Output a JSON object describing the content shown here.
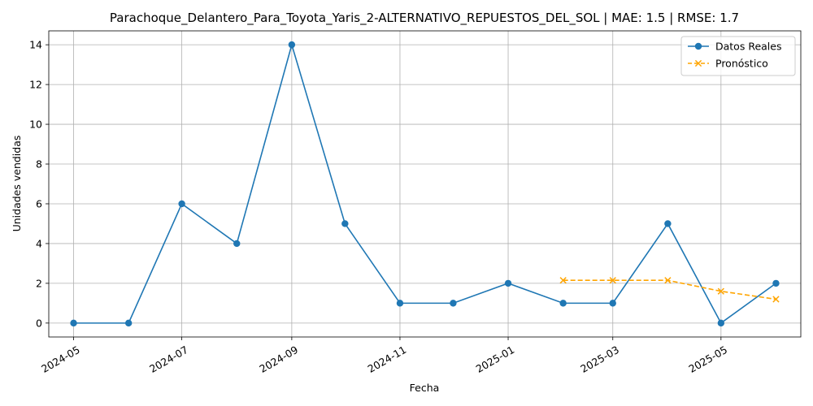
{
  "chart_data": {
    "type": "line",
    "title": "Parachoque_Delantero_Para_Toyota_Yaris_2-ALTERNATIVO_REPUESTOS_DEL_SOL | MAE: 1.5 | RMSE: 1.7",
    "xlabel": "Fecha",
    "ylabel": "Unidades vendidas",
    "ylim": [
      -0.7,
      14.7
    ],
    "xlim": [
      "2024-04-17",
      "2025-06-15"
    ],
    "x_ticks": [
      "2024-05",
      "2024-07",
      "2024-09",
      "2024-11",
      "2025-01",
      "2025-03",
      "2025-05"
    ],
    "y_ticks": [
      0,
      2,
      4,
      6,
      8,
      10,
      12,
      14
    ],
    "grid": true,
    "legend_position": "top-right",
    "series": [
      {
        "name": "Datos Reales",
        "color": "#1f77b4",
        "marker": "circle",
        "line_style": "solid",
        "x": [
          "2024-05-01",
          "2024-06-01",
          "2024-07-01",
          "2024-08-01",
          "2024-09-01",
          "2024-10-01",
          "2024-11-01",
          "2024-12-01",
          "2025-01-01",
          "2025-02-01",
          "2025-03-01",
          "2025-04-01",
          "2025-05-01",
          "2025-06-01"
        ],
        "values": [
          0,
          0,
          6,
          4,
          14,
          5,
          1,
          1,
          2,
          1,
          1,
          5,
          0,
          2
        ]
      },
      {
        "name": "Pronóstico",
        "color": "#ffa500",
        "marker": "x",
        "line_style": "dashed",
        "x": [
          "2025-02-01",
          "2025-03-01",
          "2025-04-01",
          "2025-05-01",
          "2025-06-01"
        ],
        "values": [
          2.15,
          2.15,
          2.15,
          1.6,
          1.2
        ]
      }
    ]
  }
}
